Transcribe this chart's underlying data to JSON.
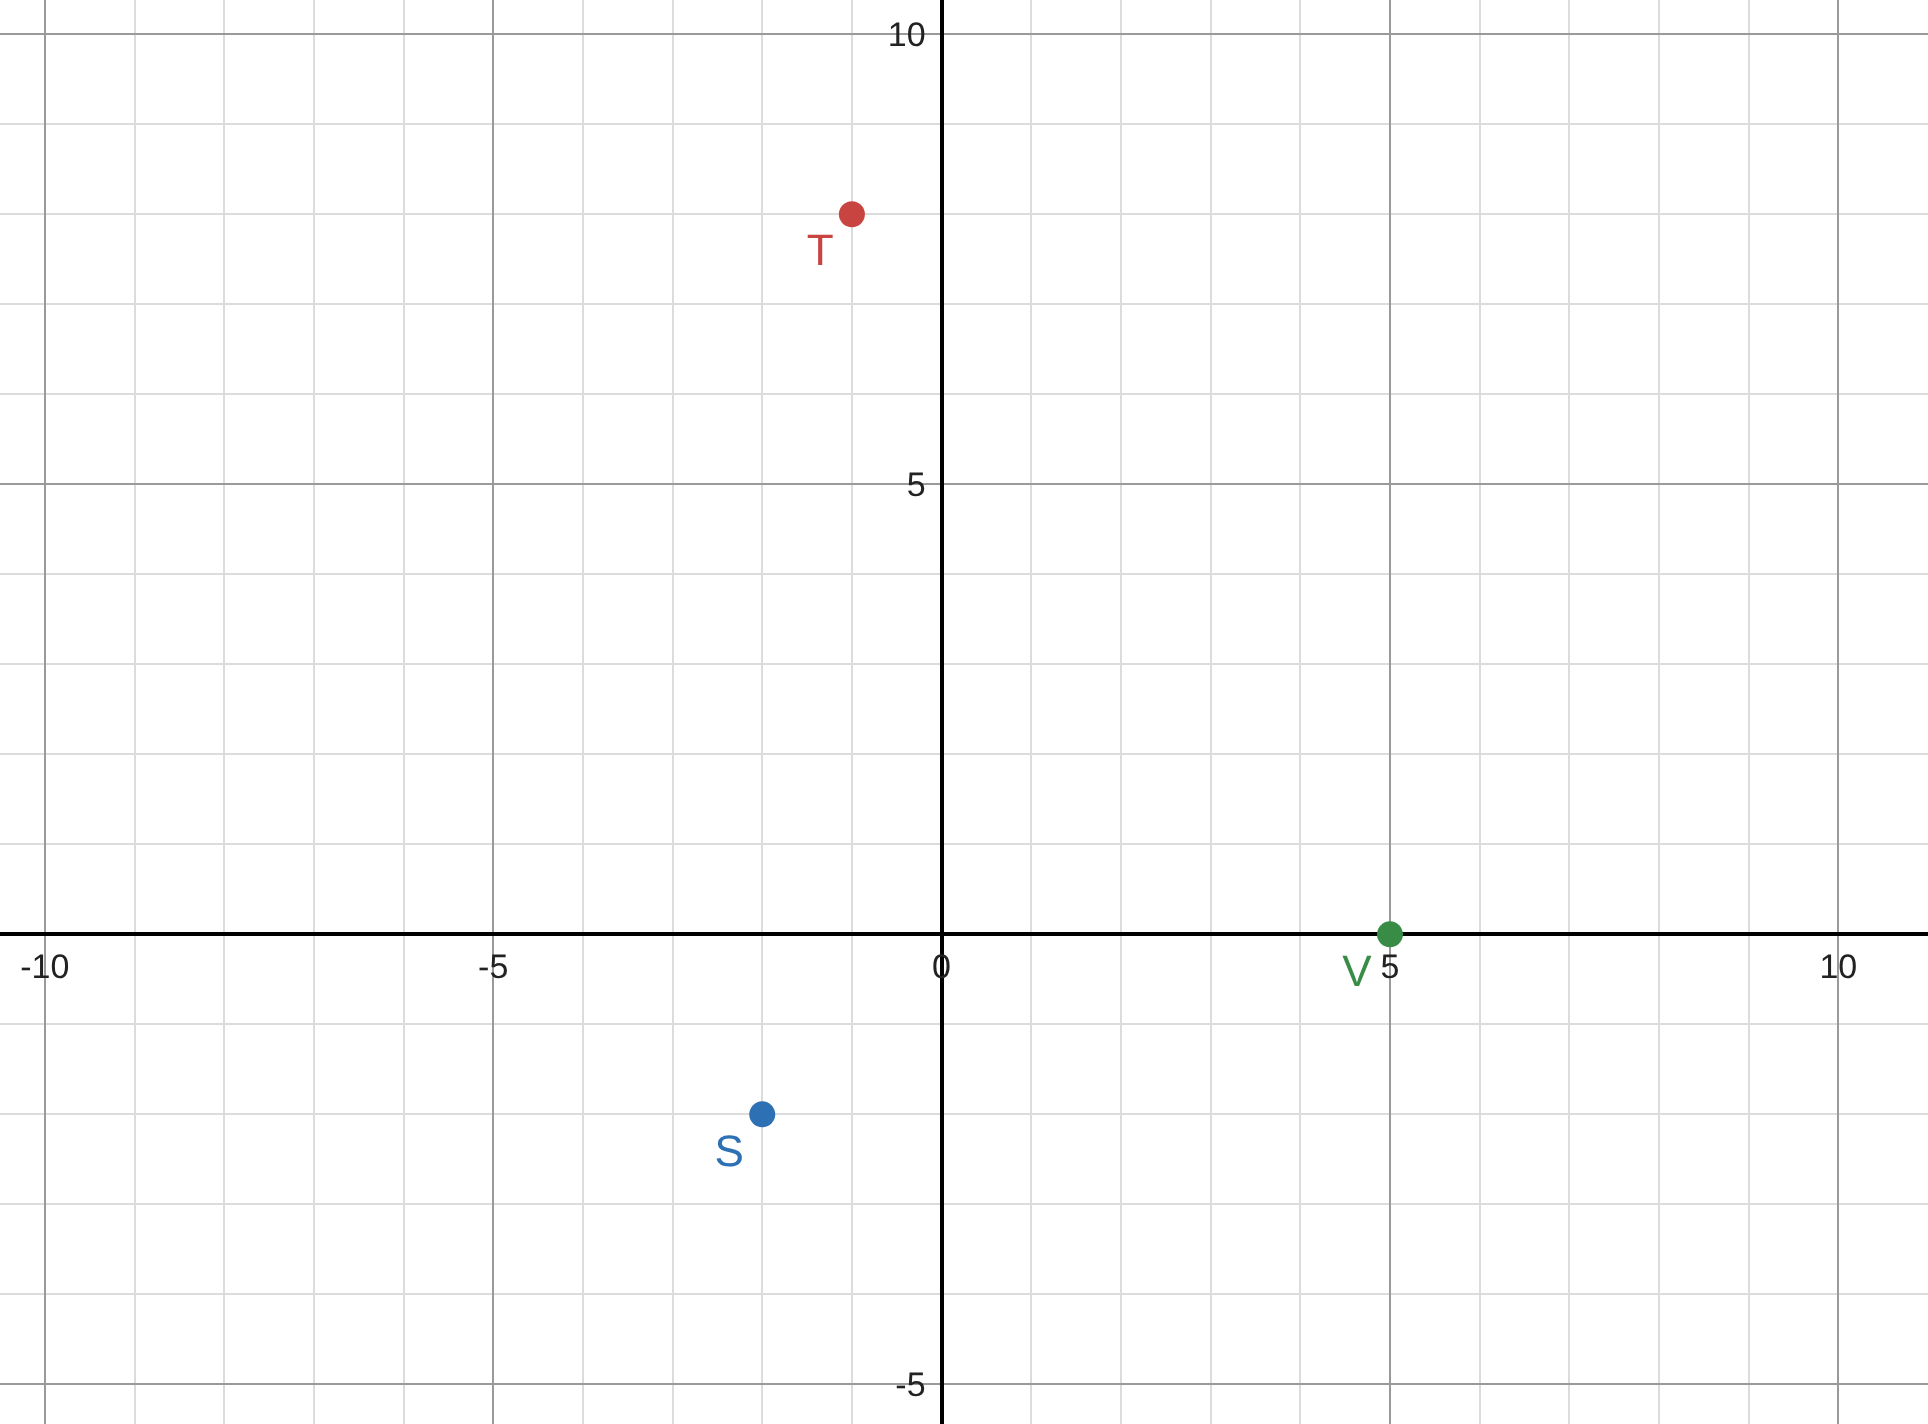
{
  "chart_data": {
    "type": "scatter",
    "series": [
      {
        "name": "T",
        "color": "#c74440",
        "x": [
          -1
        ],
        "values": [
          8
        ]
      },
      {
        "name": "S",
        "color": "#2d70b3",
        "x": [
          -2
        ],
        "values": [
          -2
        ]
      },
      {
        "name": "V",
        "color": "#388c46",
        "x": [
          5
        ],
        "values": [
          0
        ]
      }
    ],
    "xlim": [
      -10.5,
      11
    ],
    "ylim": [
      -5.44,
      10.38
    ],
    "xticks": [
      -10,
      -5,
      0,
      5,
      10
    ],
    "yticks": [
      -5,
      5,
      10
    ],
    "grid": true,
    "marker": "circle"
  }
}
